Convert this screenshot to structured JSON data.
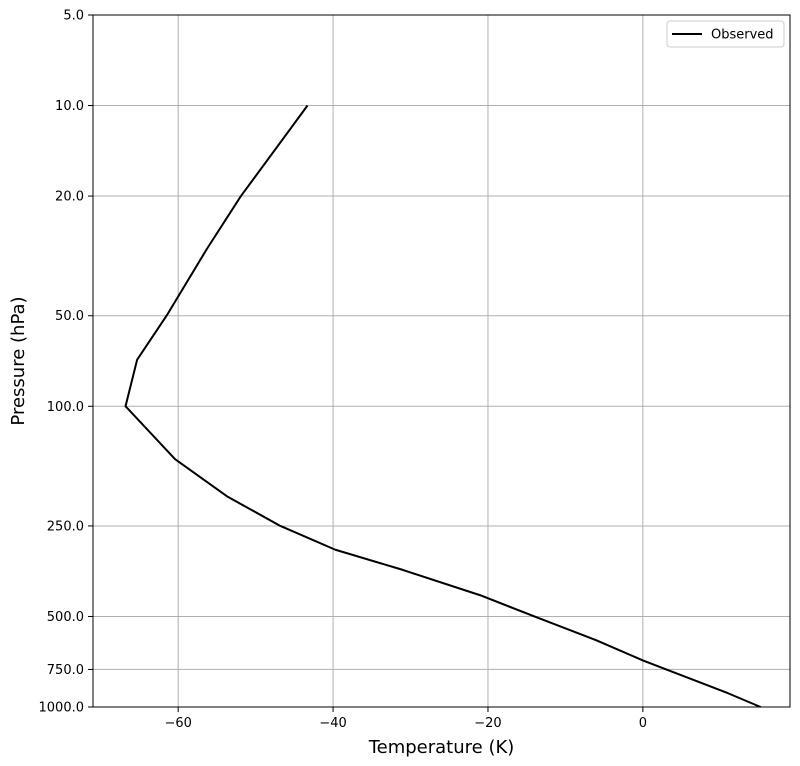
{
  "chart_data": {
    "type": "line",
    "title": "",
    "xlabel": "Temperature (K)",
    "ylabel": "Pressure (hPa)",
    "xlim": [
      -71,
      19
    ],
    "ylim": [
      1000.0,
      5.0
    ],
    "y_scale": "log",
    "grid": true,
    "legend_position": "top-right",
    "x_ticks": [
      -60,
      -40,
      -20,
      0
    ],
    "x_tick_labels": [
      "−60",
      "−40",
      "−20",
      "0"
    ],
    "y_ticks": [
      5.0,
      10.0,
      20.0,
      50.0,
      100.0,
      250.0,
      500.0,
      750.0,
      1000.0
    ],
    "y_tick_labels": [
      "5.0",
      "10.0",
      "20.0",
      "50.0",
      "100.0",
      "250.0",
      "500.0",
      "750.0",
      "1000.0"
    ],
    "colors": {
      "line": "#000000",
      "grid": "#b0b0b0"
    },
    "series": [
      {
        "name": "Observed",
        "points": [
          {
            "x": 15.2,
            "y": 1000.0
          },
          {
            "x": 11.0,
            "y": 900.0
          },
          {
            "x": 0.0,
            "y": 700.0
          },
          {
            "x": -6.0,
            "y": 600.0
          },
          {
            "x": -14.0,
            "y": 500.0
          },
          {
            "x": -21.0,
            "y": 425.0
          },
          {
            "x": -31.0,
            "y": 350.0
          },
          {
            "x": -39.7,
            "y": 300.0
          },
          {
            "x": -46.8,
            "y": 250.0
          },
          {
            "x": -53.6,
            "y": 200.0
          },
          {
            "x": -60.4,
            "y": 150.0
          },
          {
            "x": -66.8,
            "y": 100.0
          },
          {
            "x": -65.3,
            "y": 70.0
          },
          {
            "x": -61.5,
            "y": 50.0
          },
          {
            "x": -56.3,
            "y": 30.0
          },
          {
            "x": -51.9,
            "y": 20.0
          },
          {
            "x": -43.3,
            "y": 10.0
          }
        ]
      }
    ]
  }
}
